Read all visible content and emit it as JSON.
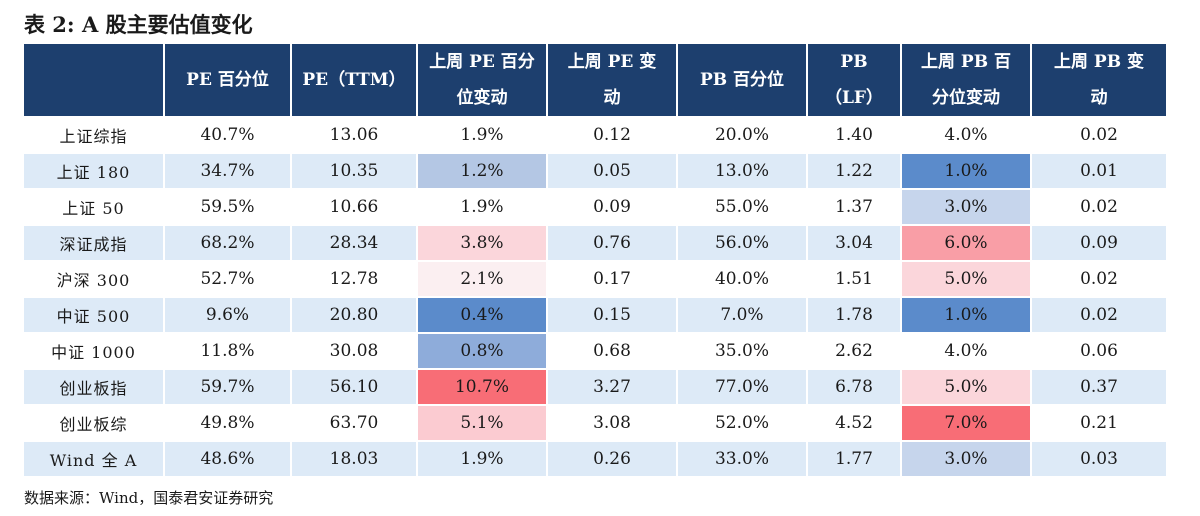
{
  "title": "表 2:  A 股主要估值变化",
  "columns": [
    {
      "lines": [
        "",
        ""
      ]
    },
    {
      "lines": [
        "PE 百分位",
        ""
      ]
    },
    {
      "lines": [
        "PE（TTM）",
        ""
      ]
    },
    {
      "lines": [
        "上周 PE 百分",
        "位变动"
      ]
    },
    {
      "lines": [
        "上周 PE 变",
        "动"
      ]
    },
    {
      "lines": [
        "PB 百分位",
        ""
      ]
    },
    {
      "lines": [
        "PB",
        "（LF）"
      ]
    },
    {
      "lines": [
        "上周 PB 百",
        "分位变动"
      ]
    },
    {
      "lines": [
        "上周 PB 变",
        "动"
      ]
    }
  ],
  "rows": [
    {
      "cells": [
        "上证综指",
        "40.7%",
        "13.06",
        "1.9%",
        "0.12",
        "20.0%",
        "1.40",
        "4.0%",
        "0.02"
      ]
    },
    {
      "cells": [
        "上证 180",
        "34.7%",
        "10.35",
        "1.2%",
        "0.05",
        "13.0%",
        "1.22",
        "1.0%",
        "0.01"
      ]
    },
    {
      "cells": [
        "上证 50",
        "59.5%",
        "10.66",
        "1.9%",
        "0.09",
        "55.0%",
        "1.37",
        "3.0%",
        "0.02"
      ]
    },
    {
      "cells": [
        "深证成指",
        "68.2%",
        "28.34",
        "3.8%",
        "0.76",
        "56.0%",
        "3.04",
        "6.0%",
        "0.09"
      ]
    },
    {
      "cells": [
        "沪深 300",
        "52.7%",
        "12.78",
        "2.1%",
        "0.17",
        "40.0%",
        "1.51",
        "5.0%",
        "0.02"
      ]
    },
    {
      "cells": [
        "中证 500",
        "9.6%",
        "20.80",
        "0.4%",
        "0.15",
        "7.0%",
        "1.78",
        "1.0%",
        "0.02"
      ]
    },
    {
      "cells": [
        "中证 1000",
        "11.8%",
        "30.08",
        "0.8%",
        "0.68",
        "35.0%",
        "2.62",
        "4.0%",
        "0.06"
      ]
    },
    {
      "cells": [
        "创业板指",
        "59.7%",
        "56.10",
        "10.7%",
        "3.27",
        "77.0%",
        "6.78",
        "5.0%",
        "0.37"
      ]
    },
    {
      "cells": [
        "创业板综",
        "49.8%",
        "63.70",
        "5.1%",
        "3.08",
        "52.0%",
        "4.52",
        "7.0%",
        "0.21"
      ]
    },
    {
      "cells": [
        "Wind 全 A",
        "48.6%",
        "18.03",
        "1.9%",
        "0.26",
        "33.0%",
        "1.77",
        "3.0%",
        "0.03"
      ]
    }
  ],
  "heatmap": {
    "pe_change_fill": [
      "",
      "#b4c7e4",
      "",
      "#fbd6db",
      "#fbeff1",
      "#5b8bcb",
      "#8eacda",
      "#f86d76",
      "#fbcbd1",
      ""
    ],
    "pb_change_fill": [
      "",
      "#5b8bcb",
      "#c6d5ec",
      "#f99ea6",
      "#fbd6db",
      "#5b8bcb",
      "",
      "#fbd6db",
      "#f86d76",
      "#c6d5ec"
    ]
  },
  "colors": {
    "header_bg": "#1d3f6e",
    "row_alt_bg": "#ddeaf7"
  },
  "source": "数据来源：Wind，国泰君安证券研究"
}
